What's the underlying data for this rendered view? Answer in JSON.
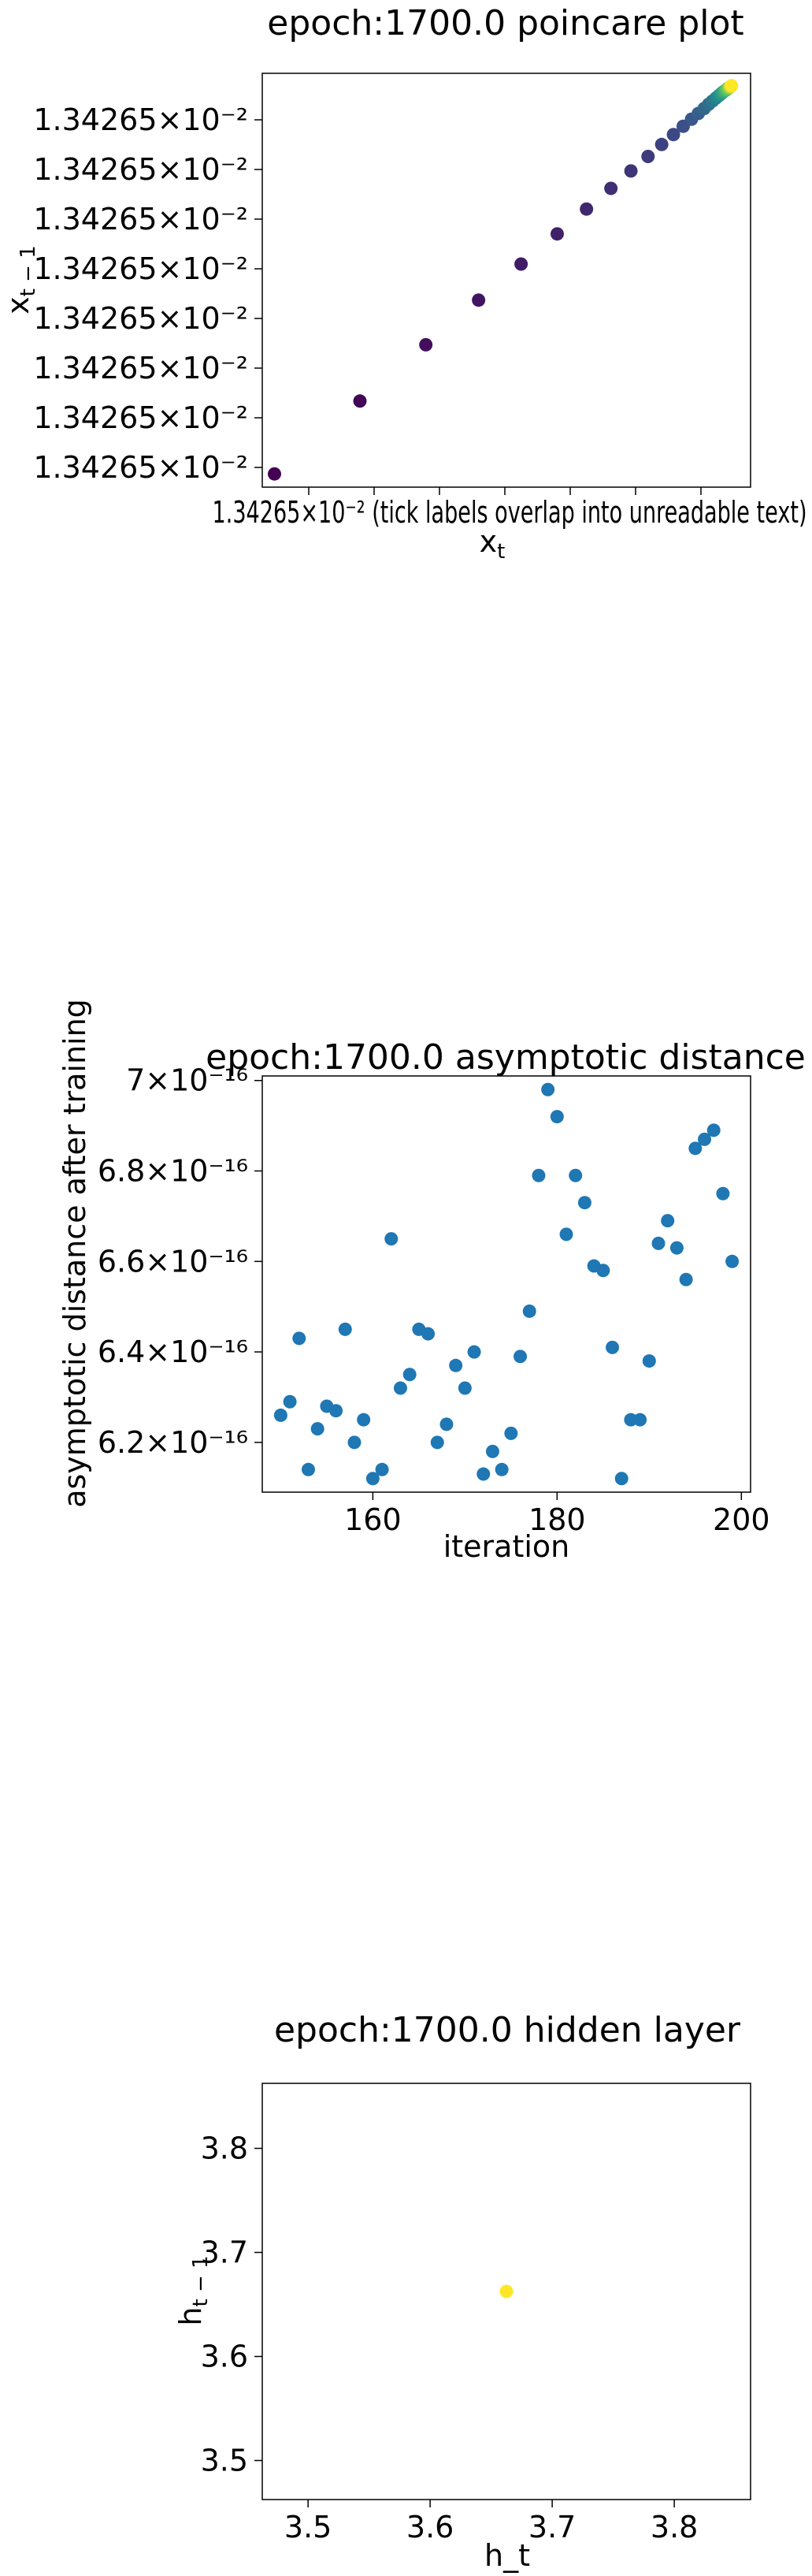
{
  "chart_data": [
    {
      "type": "scatter",
      "title": "epoch:1700.0 poincare plot",
      "xlabel": "x_t",
      "ylabel": "x_{t-1}",
      "colormap": "viridis",
      "x_tick_label_overlap": "1.34265×10⁻² (tick labels overlap into unreadable text)",
      "y_tick_labels": [
        "1.34265×10⁻²",
        "1.34265×10⁻²",
        "1.34265×10⁻²",
        "1.34265×10⁻²",
        "1.34265×10⁻²",
        "1.34265×10⁻²",
        "1.34265×10⁻²",
        "1.34265×10⁻²"
      ],
      "xlim": [
        0,
        1
      ],
      "ylim": [
        0,
        1
      ],
      "points": [
        {
          "x": 0.025,
          "y": 0.032,
          "c": 0.0
        },
        {
          "x": 0.2,
          "y": 0.208,
          "c": 0.02
        },
        {
          "x": 0.335,
          "y": 0.344,
          "c": 0.04
        },
        {
          "x": 0.443,
          "y": 0.452,
          "c": 0.06
        },
        {
          "x": 0.53,
          "y": 0.539,
          "c": 0.08
        },
        {
          "x": 0.604,
          "y": 0.612,
          "c": 0.1
        },
        {
          "x": 0.664,
          "y": 0.672,
          "c": 0.12
        },
        {
          "x": 0.714,
          "y": 0.722,
          "c": 0.14
        },
        {
          "x": 0.755,
          "y": 0.764,
          "c": 0.16
        },
        {
          "x": 0.79,
          "y": 0.799,
          "c": 0.18
        },
        {
          "x": 0.818,
          "y": 0.828,
          "c": 0.2
        },
        {
          "x": 0.842,
          "y": 0.852,
          "c": 0.22
        },
        {
          "x": 0.862,
          "y": 0.872,
          "c": 0.24
        },
        {
          "x": 0.879,
          "y": 0.889,
          "c": 0.27
        },
        {
          "x": 0.893,
          "y": 0.903,
          "c": 0.3
        },
        {
          "x": 0.905,
          "y": 0.915,
          "c": 0.33
        },
        {
          "x": 0.914,
          "y": 0.925,
          "c": 0.36
        },
        {
          "x": 0.922,
          "y": 0.933,
          "c": 0.4
        },
        {
          "x": 0.929,
          "y": 0.94,
          "c": 0.44
        },
        {
          "x": 0.935,
          "y": 0.946,
          "c": 0.48
        },
        {
          "x": 0.94,
          "y": 0.951,
          "c": 0.53
        },
        {
          "x": 0.944,
          "y": 0.955,
          "c": 0.58
        },
        {
          "x": 0.948,
          "y": 0.958,
          "c": 0.64
        },
        {
          "x": 0.951,
          "y": 0.961,
          "c": 0.7
        },
        {
          "x": 0.954,
          "y": 0.964,
          "c": 0.77
        },
        {
          "x": 0.957,
          "y": 0.966,
          "c": 0.84
        },
        {
          "x": 0.959,
          "y": 0.968,
          "c": 0.92
        },
        {
          "x": 0.961,
          "y": 0.97,
          "c": 1.0
        }
      ]
    },
    {
      "type": "scatter",
      "title": "epoch:1700.0 asymptotic distance",
      "xlabel": "iteration",
      "ylabel": "asymptotic distance after training",
      "color": "#1f77b4",
      "xlim": [
        148,
        201
      ],
      "ylim": [
        6.09,
        7.01
      ],
      "y_scale_exponent": "×10⁻¹⁶",
      "x_ticks": [
        160,
        180,
        200
      ],
      "y_ticks": [
        6.2,
        6.4,
        6.6,
        6.8,
        7.0
      ],
      "y_tick_labels": [
        "6.2×10⁻¹⁶",
        "6.4×10⁻¹⁶",
        "6.6×10⁻¹⁶",
        "6.8×10⁻¹⁶",
        "7×10⁻¹⁶"
      ],
      "x": [
        150,
        151,
        152,
        153,
        154,
        155,
        156,
        157,
        158,
        159,
        160,
        161,
        162,
        163,
        164,
        165,
        166,
        167,
        168,
        169,
        170,
        171,
        172,
        173,
        174,
        175,
        176,
        177,
        178,
        179,
        180,
        181,
        182,
        183,
        184,
        185,
        186,
        187,
        188,
        189,
        190,
        191,
        192,
        193,
        194,
        195,
        196,
        197,
        198,
        199
      ],
      "y": [
        6.26,
        6.29,
        6.43,
        6.14,
        6.23,
        6.28,
        6.27,
        6.45,
        6.2,
        6.25,
        6.12,
        6.14,
        6.65,
        6.32,
        6.35,
        6.45,
        6.44,
        6.2,
        6.24,
        6.37,
        6.32,
        6.4,
        6.13,
        6.18,
        6.14,
        6.22,
        6.39,
        6.49,
        6.79,
        6.98,
        6.92,
        6.66,
        6.79,
        6.73,
        6.59,
        6.58,
        6.41,
        6.12,
        6.25,
        6.25,
        6.38,
        6.64,
        6.69,
        6.63,
        6.56,
        6.85,
        6.87,
        6.89,
        6.75,
        6.6
      ]
    },
    {
      "type": "scatter",
      "title": "epoch:1700.0 hidden layer",
      "xlabel": "h_t",
      "ylabel": "h_{t-1}",
      "color": "#fde725",
      "xlim": [
        3.4625,
        3.8625
      ],
      "ylim": [
        3.4625,
        3.8625
      ],
      "x_ticks": [
        3.5,
        3.6,
        3.7,
        3.8
      ],
      "y_ticks": [
        3.5,
        3.6,
        3.7,
        3.8
      ],
      "x": [
        3.6625
      ],
      "y": [
        3.6625
      ]
    }
  ]
}
